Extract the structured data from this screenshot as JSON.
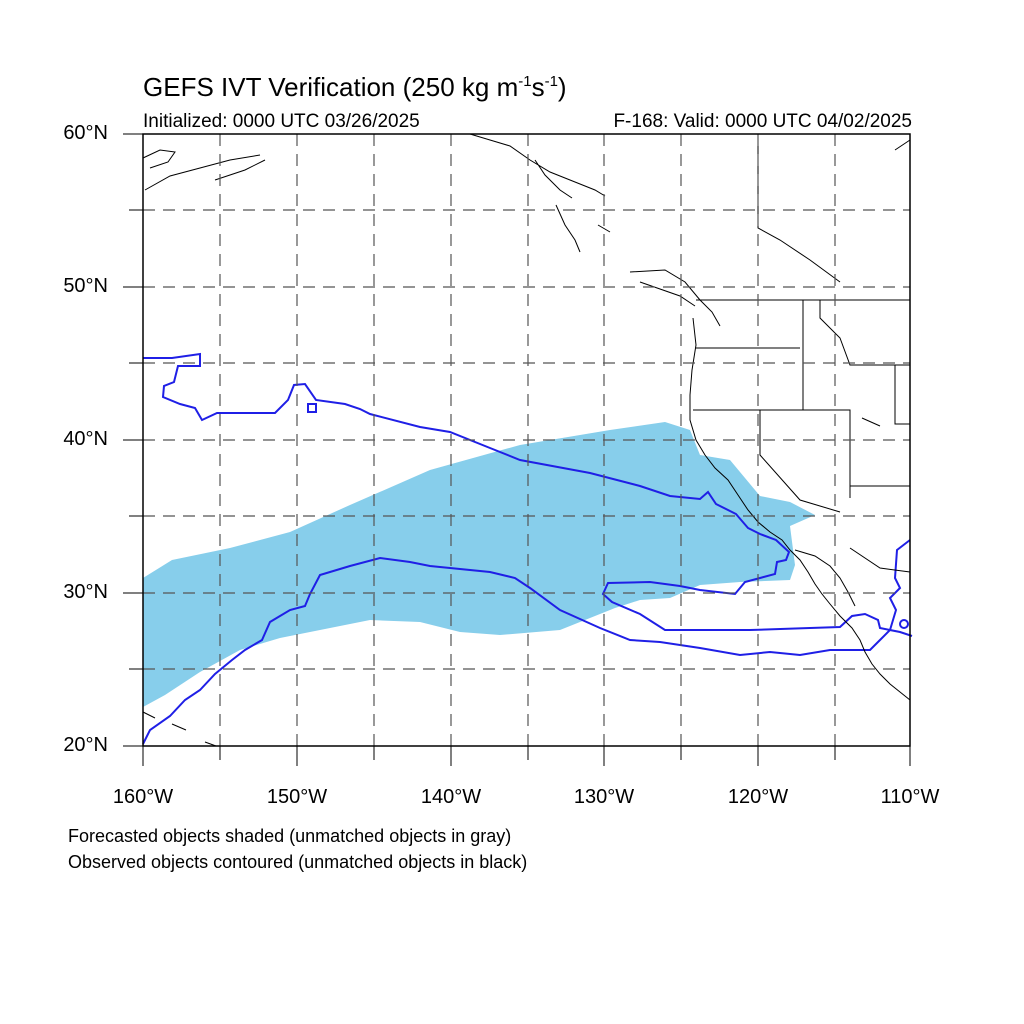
{
  "title": {
    "main_prefix": "GEFS IVT Verification (250 kg m",
    "exp1": "-1",
    "mid": "s",
    "exp2": "-1",
    "suffix": ")"
  },
  "subtitle_left": "Initialized: 0000 UTC 03/26/2025",
  "subtitle_right": "F-168: Valid: 0000 UTC 04/02/2025",
  "lat_labels": [
    "60°N",
    "50°N",
    "40°N",
    "30°N",
    "20°N"
  ],
  "lon_labels": [
    "160°W",
    "150°W",
    "140°W",
    "130°W",
    "120°W",
    "110°W"
  ],
  "footnotes": [
    "Forecasted objects shaded (unmatched objects in gray)",
    "Observed objects contoured (unmatched objects in black)"
  ],
  "map": {
    "lon_range": [
      -160,
      -110
    ],
    "lat_range": [
      20,
      60
    ],
    "forecast_fill_color": "#87ceeb",
    "observed_contour_color": "#1f1fe6",
    "coastline_color": "#000000",
    "grid_style": "dashed"
  }
}
